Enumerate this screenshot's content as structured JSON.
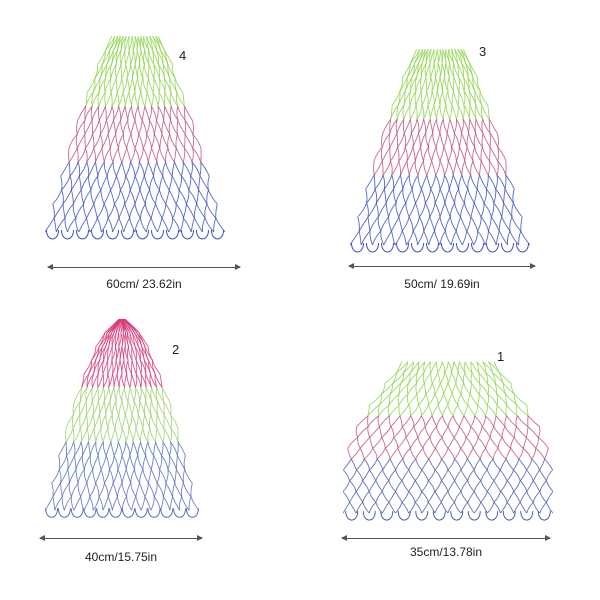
{
  "products": [
    {
      "number": "4",
      "size_label": "60cm/ 23.62in",
      "colors": [
        "#8cd44a",
        "#c0507a",
        "#3a4fc0"
      ]
    },
    {
      "number": "3",
      "size_label": "50cm/ 19.69in",
      "colors": [
        "#8cd44a",
        "#c0507a",
        "#3a4fc0"
      ]
    },
    {
      "number": "2",
      "size_label": "40cm/15.75in",
      "colors": [
        "#d63a7a",
        "#9ccf6a",
        "#5a6fbf"
      ]
    },
    {
      "number": "1",
      "size_label": "35cm/13.78in",
      "colors": [
        "#8cd44a",
        "#c0507a",
        "#4a5ab0"
      ]
    }
  ]
}
